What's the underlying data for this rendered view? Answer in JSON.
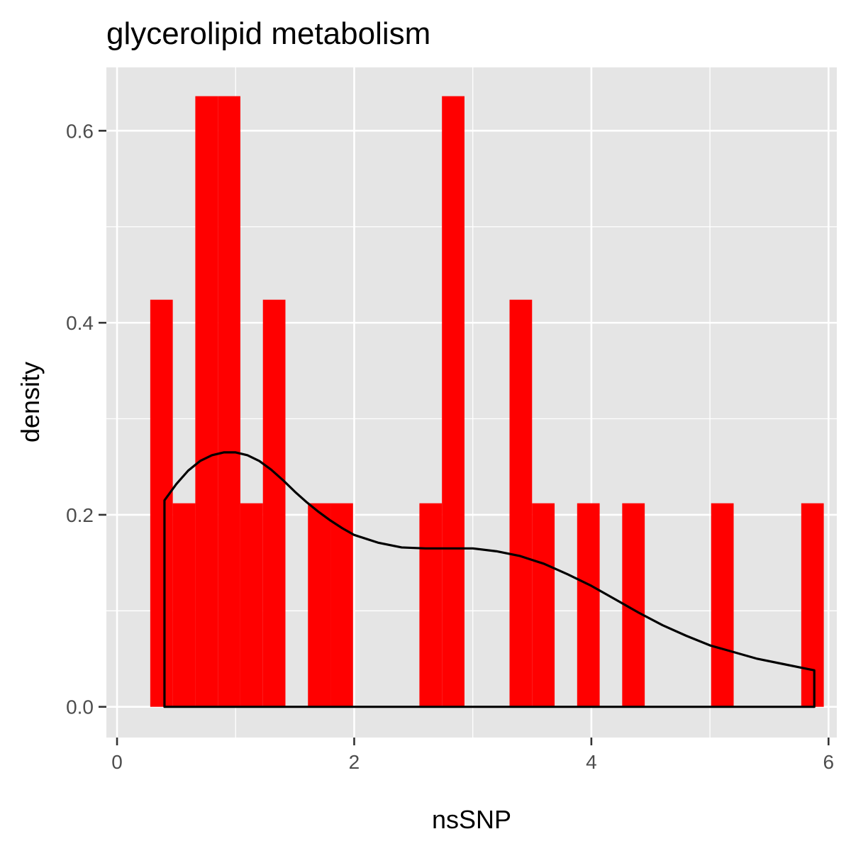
{
  "chart_data": {
    "type": "bar",
    "title": "glycerolipid metabolism",
    "xlabel": "nsSNP",
    "ylabel": "density",
    "xlim": [
      -0.09,
      6.07
    ],
    "ylim": [
      -0.032,
      0.666
    ],
    "x_ticks": [
      0,
      2,
      4,
      6
    ],
    "x_tick_labels": [
      "0",
      "2",
      "4",
      "6"
    ],
    "y_ticks": [
      0.0,
      0.2,
      0.4,
      0.6
    ],
    "y_tick_labels": [
      "0.0",
      "0.2",
      "0.4",
      "0.6"
    ],
    "x_minor": [
      1,
      3,
      5
    ],
    "y_minor": [
      0.1,
      0.3,
      0.5
    ],
    "grid": true,
    "bar_color": "#ff0000",
    "line_color": "#000000",
    "panel_background": "#e5e5e5",
    "grid_color": "#ffffff",
    "histogram": {
      "bin_width": 0.19,
      "bins": [
        {
          "x0": 0.28,
          "x1": 0.47,
          "density": 0.424
        },
        {
          "x0": 0.47,
          "x1": 0.66,
          "density": 0.212
        },
        {
          "x0": 0.66,
          "x1": 0.85,
          "density": 0.636
        },
        {
          "x0": 0.85,
          "x1": 1.04,
          "density": 0.636
        },
        {
          "x0": 1.04,
          "x1": 1.23,
          "density": 0.212
        },
        {
          "x0": 1.23,
          "x1": 1.42,
          "density": 0.424
        },
        {
          "x0": 1.61,
          "x1": 1.8,
          "density": 0.212
        },
        {
          "x0": 1.8,
          "x1": 1.99,
          "density": 0.212
        },
        {
          "x0": 2.55,
          "x1": 2.74,
          "density": 0.212
        },
        {
          "x0": 2.74,
          "x1": 2.93,
          "density": 0.636
        },
        {
          "x0": 3.31,
          "x1": 3.5,
          "density": 0.424
        },
        {
          "x0": 3.5,
          "x1": 3.69,
          "density": 0.212
        },
        {
          "x0": 3.88,
          "x1": 4.07,
          "density": 0.212
        },
        {
          "x0": 4.26,
          "x1": 4.45,
          "density": 0.212
        },
        {
          "x0": 5.01,
          "x1": 5.2,
          "density": 0.212
        },
        {
          "x0": 5.77,
          "x1": 5.96,
          "density": 0.212
        }
      ]
    },
    "density_curve": {
      "x": [
        0.4,
        0.5,
        0.6,
        0.7,
        0.8,
        0.9,
        1.0,
        1.1,
        1.2,
        1.3,
        1.4,
        1.5,
        1.6,
        1.7,
        1.8,
        1.9,
        2.0,
        2.2,
        2.4,
        2.6,
        2.8,
        3.0,
        3.2,
        3.4,
        3.6,
        3.8,
        4.0,
        4.2,
        4.4,
        4.6,
        4.8,
        5.0,
        5.2,
        5.4,
        5.6,
        5.88
      ],
      "y": [
        0.215,
        0.232,
        0.246,
        0.256,
        0.262,
        0.265,
        0.265,
        0.262,
        0.256,
        0.247,
        0.236,
        0.224,
        0.213,
        0.203,
        0.194,
        0.186,
        0.179,
        0.171,
        0.166,
        0.165,
        0.165,
        0.165,
        0.162,
        0.157,
        0.149,
        0.138,
        0.126,
        0.112,
        0.098,
        0.085,
        0.074,
        0.064,
        0.057,
        0.05,
        0.045,
        0.038
      ]
    }
  }
}
